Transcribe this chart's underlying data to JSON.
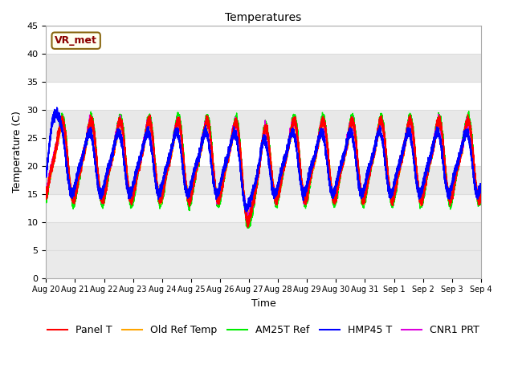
{
  "title": "Temperatures",
  "xlabel": "Time",
  "ylabel": "Temperature (C)",
  "ylim": [
    0,
    45
  ],
  "yticks": [
    0,
    5,
    10,
    15,
    20,
    25,
    30,
    35,
    40,
    45
  ],
  "num_days": 15,
  "num_points": 15000,
  "series": {
    "Panel T": {
      "color": "#ff0000",
      "lw": 1.0
    },
    "Old Ref Temp": {
      "color": "#ffa500",
      "lw": 1.0
    },
    "AM25T Ref": {
      "color": "#00ee00",
      "lw": 1.0
    },
    "HMP45 T": {
      "color": "#0000ff",
      "lw": 1.0
    },
    "CNR1 PRT": {
      "color": "#dd00dd",
      "lw": 1.0
    }
  },
  "xtick_labels": [
    "Aug 20",
    "Aug 21",
    "Aug 22",
    "Aug 23",
    "Aug 24",
    "Aug 25",
    "Aug 26",
    "Aug 27",
    "Aug 28",
    "Aug 29",
    "Aug 30",
    "Aug 31",
    "Sep 1",
    "Sep 2",
    "Sep 3",
    "Sep 4"
  ],
  "annotation_text": "VR_met",
  "bg_plot": "#ffffff",
  "bg_lower": "#e8e8e8",
  "bg_figure": "#ffffff",
  "grid_color": "#dddddd",
  "band_color": "#e8e8e8",
  "band_ranges": [
    [
      0,
      10
    ],
    [
      15,
      20
    ],
    [
      25,
      30
    ],
    [
      35,
      40
    ]
  ],
  "legend_fontsize": 9,
  "tick_fontsize": 8
}
